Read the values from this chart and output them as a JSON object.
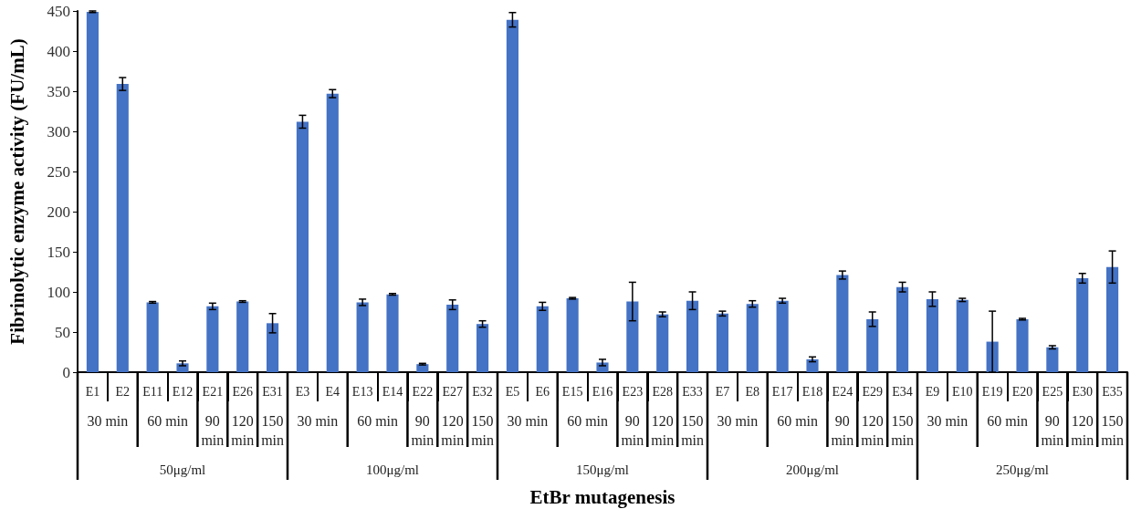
{
  "chart_data": {
    "type": "bar",
    "xlabel": "EtBr mutagenesis",
    "ylabel": "Fibrinolytic enzyme activity (FU/mL)",
    "categories": [
      "E1",
      "E2",
      "E11",
      "E12",
      "E21",
      "E26",
      "E31",
      "E3",
      "E4",
      "E13",
      "E14",
      "E22",
      "E27",
      "E32",
      "E5",
      "E6",
      "E15",
      "E16",
      "E23",
      "E28",
      "E33",
      "E7",
      "E8",
      "E17",
      "E18",
      "E24",
      "E29",
      "E34",
      "E9",
      "E10",
      "E19",
      "E20",
      "E25",
      "E30",
      "E35"
    ],
    "values": [
      449,
      359,
      87,
      11,
      82,
      88,
      61,
      312,
      347,
      87,
      97,
      10,
      84,
      60,
      439,
      82,
      92,
      12,
      88,
      72,
      89,
      73,
      85,
      89,
      16,
      121,
      66,
      106,
      91,
      90,
      38,
      66,
      31,
      117,
      131
    ],
    "errors": [
      1,
      8,
      1,
      3,
      4,
      1,
      12,
      8,
      5,
      4,
      1,
      1,
      6,
      4,
      9,
      5,
      1,
      4,
      24,
      3,
      11,
      3,
      4,
      3,
      3,
      5,
      9,
      6,
      9,
      2,
      38,
      1,
      2,
      6,
      20
    ],
    "color": "#4472c4",
    "ylim": [
      0,
      450
    ],
    "yticks": [
      0,
      50,
      100,
      150,
      200,
      250,
      300,
      350,
      400,
      450
    ],
    "grid": false,
    "annotations": [
      "30 min",
      "60 min",
      "90 min",
      "120 min",
      "150 min",
      "50μg/ml",
      "30 min",
      "60 min",
      "90 min",
      "120 min",
      "150 min",
      "100μg/ml",
      "30 min",
      "60 min",
      "90 min",
      "120 min",
      "150 min",
      "150μg/ml",
      "30 min",
      "60 min",
      "90 min",
      "120 min",
      "150 min",
      "200μg/ml",
      "30 min",
      "60 min",
      "90 min",
      "120 min",
      "150 min",
      "250μg/ml"
    ]
  }
}
